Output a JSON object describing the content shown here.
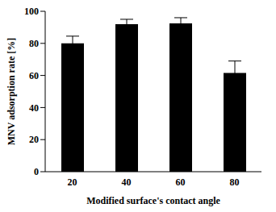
{
  "chart_data": {
    "type": "bar",
    "categories": [
      "20",
      "40",
      "60",
      "80"
    ],
    "values": [
      80,
      92,
      92.5,
      61.5
    ],
    "errors": [
      4.5,
      3,
      3.5,
      7.5
    ],
    "color": "#000000",
    "xlabel": "Modified surface's contact angle",
    "ylabel": "MNV adsorption rate [%]",
    "ylim": [
      0,
      100
    ],
    "yticks": [
      0,
      20,
      40,
      60,
      80,
      100
    ],
    "grid": false
  }
}
